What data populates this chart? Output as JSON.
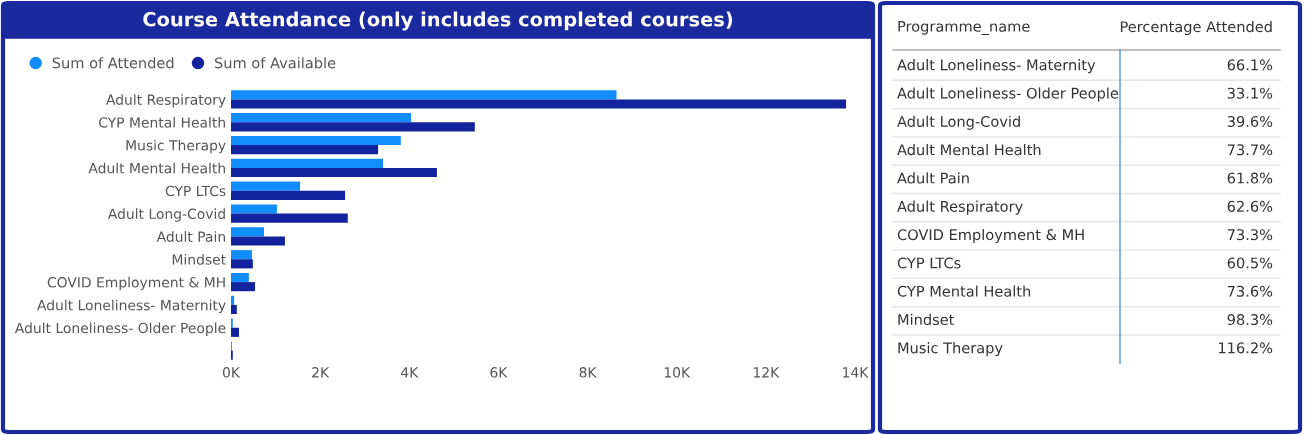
{
  "chart_data": [
    {
      "type": "bar",
      "title": "Course Attendance (only includes completed courses)",
      "orientation": "horizontal",
      "legend": "top left",
      "grid": false,
      "categories": [
        "Adult Respiratory",
        "CYP Mental Health",
        "Music Therapy",
        "Adult Mental Health",
        "CYP LTCs",
        "Adult Long-Covid",
        "Adult Pain",
        "Mindset",
        "COVID Employment & MH",
        "Adult Loneliness- Maternity",
        "Adult Loneliness- Older People",
        null
      ],
      "series": [
        {
          "name": "Sum of Attended",
          "color": "#118dff",
          "values": [
            8650,
            4040,
            3810,
            3410,
            1550,
            1030,
            740,
            470,
            400,
            70,
            40,
            20
          ]
        },
        {
          "name": "Sum of Available",
          "color": "#12239e",
          "values": [
            13800,
            5470,
            3300,
            4620,
            2560,
            2620,
            1210,
            490,
            540,
            130,
            180,
            40
          ]
        }
      ],
      "xlim": [
        0,
        14000
      ],
      "xticks": [
        {
          "value": 0,
          "label": "0K"
        },
        {
          "value": 2000,
          "label": "2K"
        },
        {
          "value": 4000,
          "label": "4K"
        },
        {
          "value": 6000,
          "label": "6K"
        },
        {
          "value": 8000,
          "label": "8K"
        },
        {
          "value": 10000,
          "label": "10K"
        },
        {
          "value": 12000,
          "label": "12K"
        },
        {
          "value": 14000,
          "label": "14K"
        }
      ]
    },
    {
      "type": "other",
      "annotations": [
        "Programme_name",
        "Percentage Attended"
      ],
      "categories": [
        "Adult Loneliness- Maternity",
        "Adult Loneliness- Older People",
        "Adult Long-Covid",
        "Adult Mental Health",
        "Adult Pain",
        "Adult Respiratory",
        "COVID Employment & MH",
        "CYP LTCs",
        "CYP Mental Health",
        "Mindset",
        "Music Therapy"
      ],
      "value_labels": [
        "66.1%",
        "33.1%",
        "39.6%",
        "73.7%",
        "61.8%",
        "62.6%",
        "73.3%",
        "60.5%",
        "73.6%",
        "98.3%",
        "116.2%"
      ]
    }
  ]
}
